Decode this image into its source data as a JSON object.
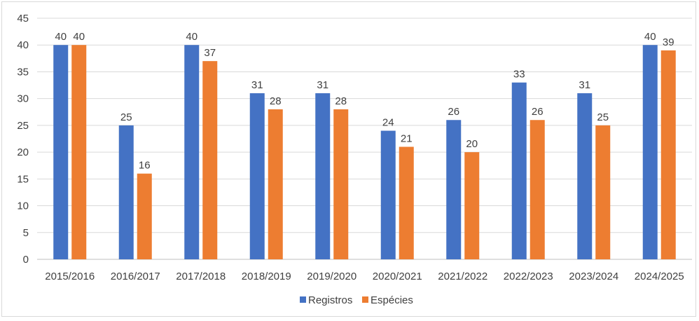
{
  "chart_data": {
    "type": "bar",
    "categories": [
      "2015/2016",
      "2016/2017",
      "2017/2018",
      "2018/2019",
      "2019/2020",
      "2020/2021",
      "2021/2022",
      "2022/2023",
      "2023/2024",
      "2024/2025"
    ],
    "series": [
      {
        "name": "Registros",
        "values": [
          40,
          25,
          40,
          31,
          31,
          24,
          26,
          33,
          31,
          40
        ],
        "color": "#4472c4"
      },
      {
        "name": "Espécies",
        "values": [
          40,
          16,
          37,
          28,
          28,
          21,
          20,
          26,
          25,
          39
        ],
        "color": "#ed7d31"
      }
    ],
    "ylim": [
      0,
      45
    ],
    "yticks": [
      "0",
      "5",
      "10",
      "15",
      "20",
      "25",
      "30",
      "35",
      "40",
      "45"
    ],
    "grid": true,
    "legend_position": "bottom",
    "colors": {
      "gridline": "#d9d9d9",
      "axis": "#bfbfbf"
    }
  }
}
